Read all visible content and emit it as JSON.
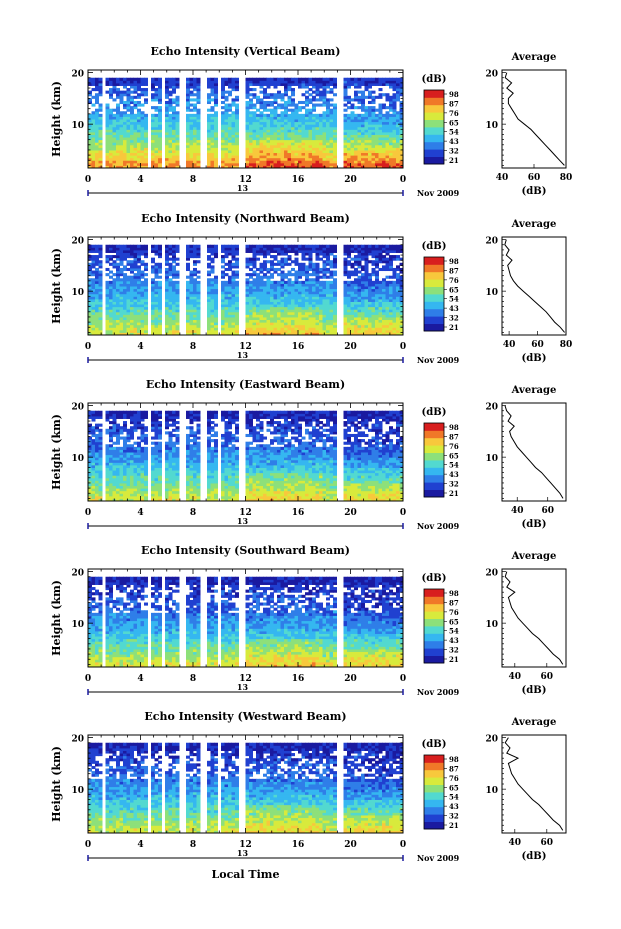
{
  "common": {
    "ylabel": "Height (km)",
    "xlabel": "Local Time",
    "month_label": "Nov 2009",
    "day_label": "13",
    "x_ticks": [
      "0",
      "4",
      "8",
      "12",
      "16",
      "20",
      "0"
    ],
    "y_ticks": [
      "20",
      "10"
    ],
    "colorbar_title": "(dB)",
    "colorbar_ticks": [
      "98",
      "87",
      "76",
      "65",
      "54",
      "43",
      "32",
      "21"
    ],
    "average_title": "Average",
    "average_xlabel": "(dB)",
    "average_y_ticks": [
      "20",
      "10"
    ],
    "colormap": [
      "#1a1aa0",
      "#2040d0",
      "#2f7ee8",
      "#35b7f0",
      "#52d9d0",
      "#8de07a",
      "#d8ea3c",
      "#f8c83c",
      "#f07828",
      "#d81e1e"
    ]
  },
  "chart_data": [
    {
      "type": "heatmap",
      "title": "Echo Intensity (Vertical Beam)",
      "xlabel": "Local Time",
      "ylabel": "Height (km)",
      "xlim": [
        0,
        24
      ],
      "ylim": [
        1.5,
        20.5
      ],
      "colorbar_range_db": [
        21,
        98
      ],
      "data_gaps_hours": [
        [
          1.0,
          1.3
        ],
        [
          4.4,
          4.8
        ],
        [
          5.5,
          5.8
        ],
        [
          7.0,
          7.4
        ],
        [
          8.6,
          9.0
        ],
        [
          9.9,
          10.2
        ],
        [
          11.6,
          12.0
        ],
        [
          18.9,
          19.5
        ]
      ],
      "intensity_profile_db": {
        "heights_km": [
          2,
          4,
          6,
          8,
          10,
          12,
          14,
          16,
          18,
          20
        ],
        "values": [
          85,
          75,
          66,
          59,
          52,
          46,
          41,
          37,
          31,
          27
        ]
      },
      "average": {
        "title": "Average",
        "xlabel": "(dB)",
        "xlim": [
          40,
          80
        ],
        "x_ticks": [
          "40",
          "60",
          "80"
        ],
        "ylim": [
          1.5,
          20.5
        ],
        "heights_km": [
          2,
          3,
          4,
          5,
          6,
          7,
          8,
          9,
          10,
          11,
          12,
          13,
          14,
          15,
          16,
          17,
          18,
          19,
          20
        ],
        "values": [
          79,
          76,
          73,
          70,
          67,
          64,
          61,
          58,
          54,
          50,
          48,
          46,
          44,
          44,
          47,
          43,
          46,
          42,
          43
        ]
      }
    },
    {
      "type": "heatmap",
      "title": "Echo Intensity (Northward Beam)",
      "xlabel": "Local Time",
      "ylabel": "Height (km)",
      "xlim": [
        0,
        24
      ],
      "ylim": [
        1.5,
        20.5
      ],
      "colorbar_range_db": [
        21,
        98
      ],
      "data_gaps_hours": [
        [
          1.0,
          1.3
        ],
        [
          4.4,
          4.8
        ],
        [
          5.5,
          5.8
        ],
        [
          7.0,
          7.4
        ],
        [
          8.6,
          9.0
        ],
        [
          9.9,
          10.2
        ],
        [
          11.6,
          12.0
        ],
        [
          18.9,
          19.5
        ]
      ],
      "intensity_profile_db": {
        "heights_km": [
          2,
          4,
          6,
          8,
          10,
          12,
          14,
          16,
          18,
          20
        ],
        "values": [
          72,
          64,
          57,
          51,
          45,
          40,
          36,
          33,
          29,
          25
        ]
      },
      "average": {
        "title": "Average",
        "xlabel": "(dB)",
        "xlim": [
          35,
          80
        ],
        "x_ticks": [
          "40",
          "60",
          "80"
        ],
        "ylim": [
          1.5,
          20.5
        ],
        "heights_km": [
          2,
          3,
          4,
          5,
          6,
          7,
          8,
          9,
          10,
          11,
          12,
          13,
          14,
          15,
          16,
          17,
          18,
          19,
          20
        ],
        "values": [
          79,
          76,
          72,
          69,
          66,
          62,
          58,
          54,
          50,
          46,
          43,
          41,
          40,
          39,
          42,
          38,
          40,
          37,
          38
        ]
      }
    },
    {
      "type": "heatmap",
      "title": "Echo Intensity (Eastward Beam)",
      "xlabel": "Local Time",
      "ylabel": "Height (km)",
      "xlim": [
        0,
        24
      ],
      "ylim": [
        1.5,
        20.5
      ],
      "colorbar_range_db": [
        21,
        98
      ],
      "data_gaps_hours": [
        [
          1.0,
          1.3
        ],
        [
          4.4,
          4.8
        ],
        [
          5.5,
          5.8
        ],
        [
          7.0,
          7.4
        ],
        [
          8.6,
          9.0
        ],
        [
          9.9,
          10.2
        ],
        [
          11.6,
          12.0
        ],
        [
          18.9,
          19.5
        ]
      ],
      "intensity_profile_db": {
        "heights_km": [
          2,
          4,
          6,
          8,
          10,
          12,
          14,
          16,
          18,
          20
        ],
        "values": [
          71,
          63,
          56,
          50,
          44,
          39,
          35,
          32,
          28,
          24
        ]
      },
      "average": {
        "title": "Average",
        "xlabel": "(dB)",
        "xlim": [
          30,
          72
        ],
        "x_ticks": [
          "40",
          "60"
        ],
        "ylim": [
          1.5,
          20.5
        ],
        "heights_km": [
          2,
          3,
          4,
          5,
          6,
          7,
          8,
          9,
          10,
          11,
          12,
          13,
          14,
          15,
          16,
          17,
          18,
          19,
          20
        ],
        "values": [
          70,
          68,
          65,
          62,
          59,
          56,
          52,
          49,
          46,
          43,
          40,
          38,
          36,
          35,
          38,
          34,
          36,
          33,
          32
        ]
      }
    },
    {
      "type": "heatmap",
      "title": "Echo Intensity (Southward Beam)",
      "xlabel": "Local Time",
      "ylabel": "Height (km)",
      "xlim": [
        0,
        24
      ],
      "ylim": [
        1.5,
        20.5
      ],
      "colorbar_range_db": [
        21,
        98
      ],
      "data_gaps_hours": [
        [
          1.0,
          1.3
        ],
        [
          4.4,
          4.8
        ],
        [
          5.5,
          5.8
        ],
        [
          7.0,
          7.4
        ],
        [
          8.6,
          9.0
        ],
        [
          9.9,
          10.2
        ],
        [
          11.6,
          12.0
        ],
        [
          18.9,
          19.5
        ]
      ],
      "intensity_profile_db": {
        "heights_km": [
          2,
          4,
          6,
          8,
          10,
          12,
          14,
          16,
          18,
          20
        ],
        "values": [
          72,
          64,
          57,
          50,
          44,
          39,
          35,
          32,
          28,
          24
        ]
      },
      "average": {
        "title": "Average",
        "xlabel": "(dB)",
        "xlim": [
          32,
          72
        ],
        "x_ticks": [
          "40",
          "60"
        ],
        "ylim": [
          1.5,
          20.5
        ],
        "heights_km": [
          2,
          3,
          4,
          5,
          6,
          7,
          8,
          9,
          10,
          11,
          12,
          13,
          14,
          15,
          16,
          17,
          18,
          19,
          20
        ],
        "values": [
          70,
          68,
          64,
          61,
          58,
          55,
          51,
          48,
          45,
          42,
          40,
          38,
          37,
          36,
          40,
          35,
          37,
          34,
          35
        ]
      }
    },
    {
      "type": "heatmap",
      "title": "Echo Intensity (Westward Beam)",
      "xlabel": "Local Time",
      "ylabel": "Height (km)",
      "xlim": [
        0,
        24
      ],
      "ylim": [
        1.5,
        20.5
      ],
      "colorbar_range_db": [
        21,
        98
      ],
      "data_gaps_hours": [
        [
          1.0,
          1.3
        ],
        [
          4.4,
          4.8
        ],
        [
          5.5,
          5.8
        ],
        [
          7.0,
          7.4
        ],
        [
          8.6,
          9.0
        ],
        [
          9.9,
          10.2
        ],
        [
          11.6,
          12.0
        ],
        [
          18.9,
          19.5
        ]
      ],
      "intensity_profile_db": {
        "heights_km": [
          2,
          4,
          6,
          8,
          10,
          12,
          14,
          16,
          18,
          20
        ],
        "values": [
          71,
          63,
          56,
          50,
          44,
          39,
          35,
          32,
          28,
          24
        ]
      },
      "average": {
        "title": "Average",
        "xlabel": "(dB)",
        "xlim": [
          32,
          72
        ],
        "x_ticks": [
          "40",
          "60"
        ],
        "ylim": [
          1.5,
          20.5
        ],
        "heights_km": [
          2,
          3,
          4,
          5,
          6,
          7,
          8,
          9,
          10,
          11,
          12,
          13,
          14,
          15,
          16,
          17,
          18,
          19,
          20
        ],
        "values": [
          70,
          68,
          64,
          61,
          58,
          55,
          51,
          48,
          45,
          42,
          40,
          38,
          37,
          36,
          42,
          35,
          37,
          34,
          36
        ]
      }
    }
  ]
}
